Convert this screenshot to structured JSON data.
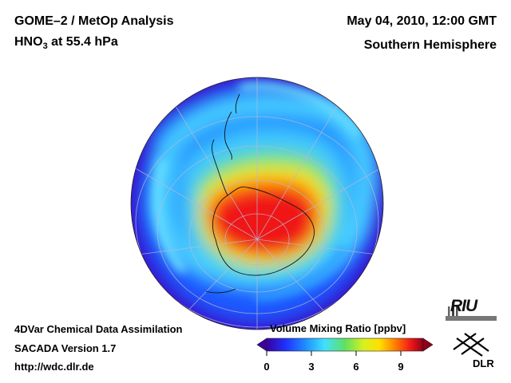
{
  "header": {
    "title_line1": "GOME–2 / MetOp Analysis",
    "title_line2_prefix": "HNO",
    "title_line2_sub": "3",
    "title_line2_suffix": " at 55.4 hPa",
    "date": "May 04, 2010, 12:00 GMT",
    "hemisphere": "Southern Hemisphere"
  },
  "footer": {
    "line1": "4DVar Chemical Data Assimilation",
    "line2": "SACADA Version 1.7",
    "line3": "http://wdc.dlr.de"
  },
  "colorbar": {
    "title": "Volume Mixing Ratio [ppbv]",
    "ticks": [
      "0",
      "3",
      "6",
      "9"
    ],
    "range": [
      0,
      10.5
    ]
  },
  "logos": {
    "riu": "RIU",
    "dlr": "DLR"
  },
  "colors": {
    "low": "#4b007a",
    "mid_blue": "#1e6cff",
    "cyan": "#44d8ff",
    "green": "#5be25b",
    "yellow": "#ffe000",
    "orange": "#ff8a00",
    "red": "#e81010",
    "high": "#7a0010"
  },
  "map": {
    "projection": "orthographic, south pole centered",
    "parameter": "HNO3 volume mixing ratio"
  }
}
